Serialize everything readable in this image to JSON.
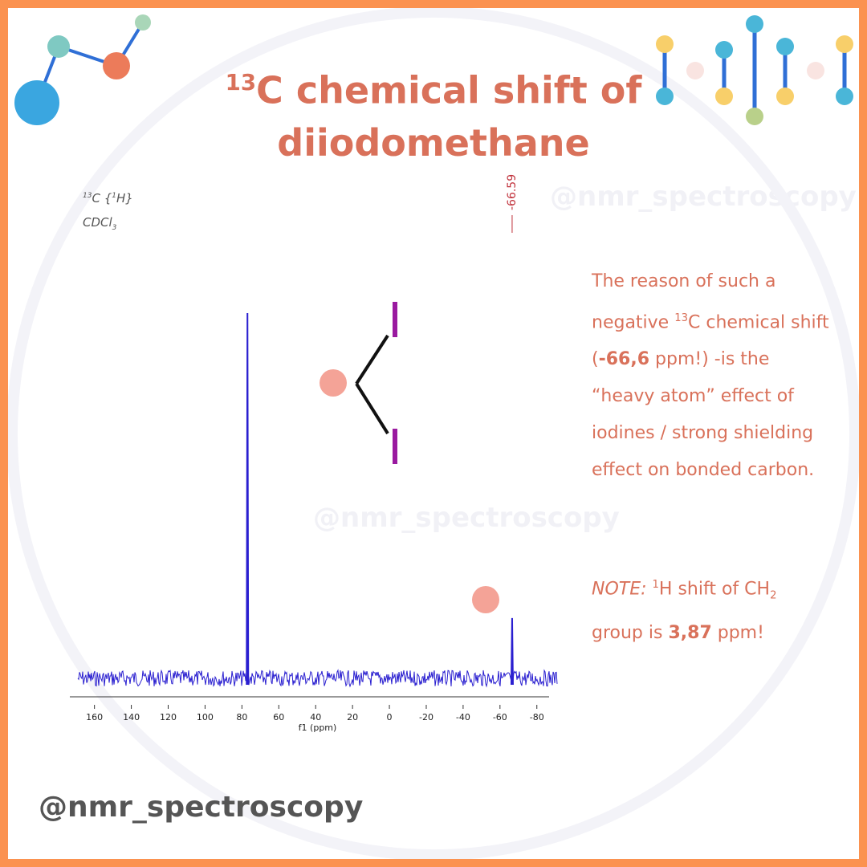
{
  "title": [
    {
      "sup": "13"
    },
    {
      "text": "C chemical shift of"
    },
    {
      "br": ""
    },
    {
      "text": "diiodomethane"
    }
  ],
  "chart_data": {
    "type": "line",
    "nucleus": [
      {
        "sup": "13"
      },
      {
        "text": "C {"
      },
      {
        "sup": "1"
      },
      {
        "text": "H}"
      }
    ],
    "solvent": [
      {
        "text": "CDCl"
      },
      {
        "sub": "3"
      }
    ],
    "x_label": "f1 (ppm)",
    "xlim": [
      169,
      -91
    ],
    "xticks": [
      160,
      140,
      120,
      100,
      80,
      60,
      40,
      20,
      0,
      -20,
      -40,
      -60,
      -80
    ],
    "ylim": [
      0,
      100
    ],
    "series": [
      {
        "color": "#2a1fd0",
        "x": [
          77,
          -66.59
        ],
        "values": [
          100,
          16.5
        ]
      }
    ],
    "x_labels": [
      null,
      "-66.59"
    ]
  },
  "description": [
    {
      "text": "The reason of such a negative "
    },
    {
      "sup": "13"
    },
    {
      "text": "C chemical shift ("
    },
    {
      "b": "-66,6"
    },
    {
      "text": " ppm!) -is the “heavy atom” effect of iodines / strong shielding effect on bonded carbon."
    }
  ],
  "note": [
    {
      "i": "NOTE:"
    },
    {
      "text": " "
    },
    {
      "sup": "1"
    },
    {
      "text": "H shift of CH"
    },
    {
      "sub": "2"
    },
    {
      "text": " group is "
    },
    {
      "b": "3,87"
    },
    {
      "text": " ppm!"
    }
  ],
  "watermarks": [
    "@nmr_spectroscopy",
    "@nmr_spectroscopy"
  ],
  "footer": "@nmr_spectroscopy"
}
